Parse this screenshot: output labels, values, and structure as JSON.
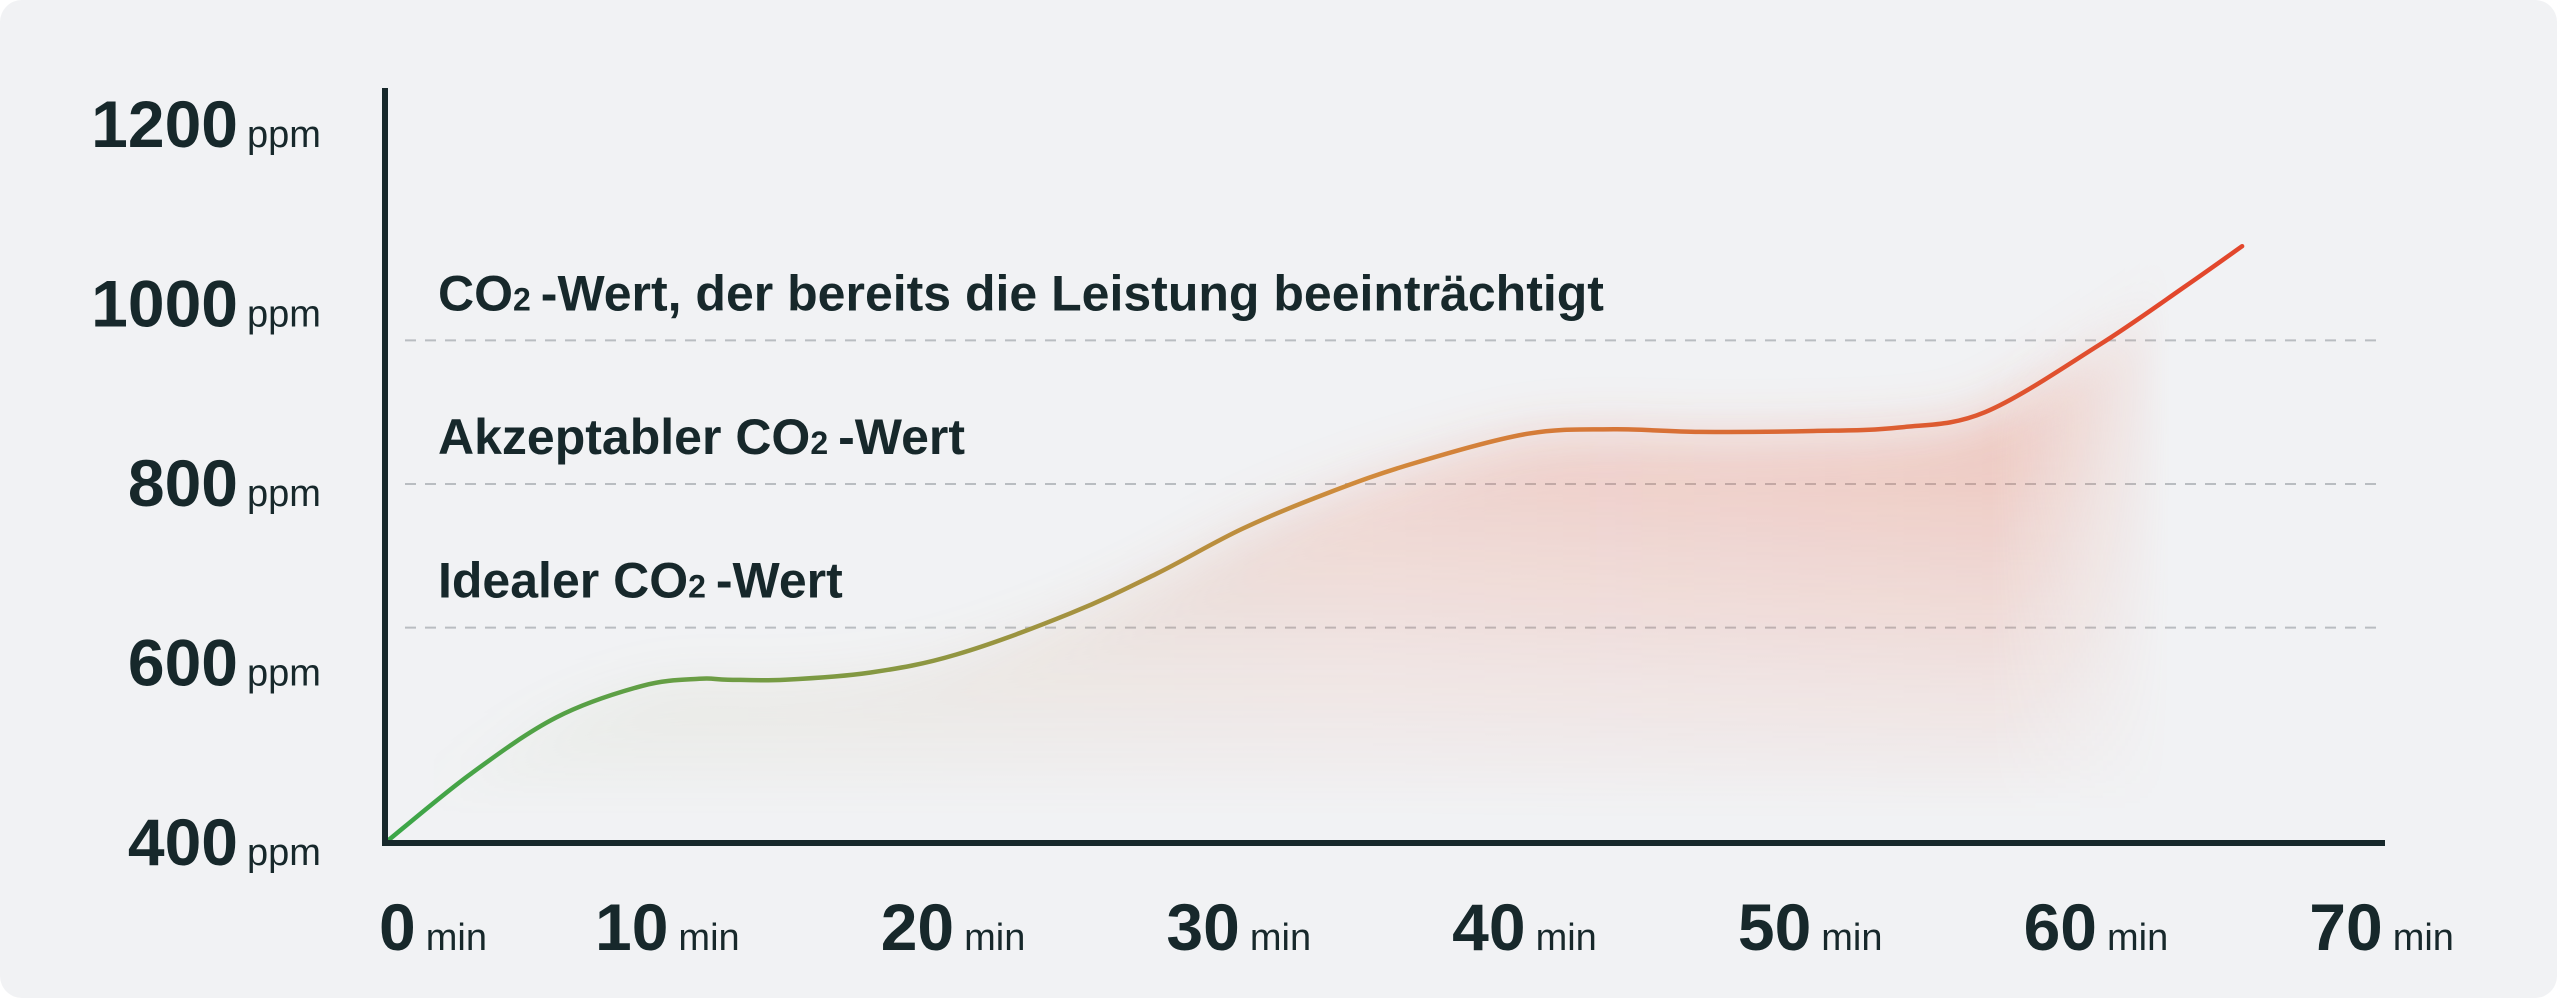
{
  "chart_data": {
    "type": "area",
    "title": "",
    "xlabel": "",
    "ylabel": "",
    "x_unit": "min",
    "y_unit": "ppm",
    "xlim": [
      0,
      70
    ],
    "ylim": [
      400,
      1200
    ],
    "x_ticks": [
      "0",
      "10",
      "20",
      "30",
      "40",
      "50",
      "60",
      "70"
    ],
    "y_ticks": [
      "1200",
      "1000",
      "800",
      "600",
      "400"
    ],
    "grid": false,
    "series": [
      {
        "x": [
          0,
          3,
          6,
          9,
          11,
          12,
          14,
          17,
          20,
          24,
          27,
          30,
          33,
          36,
          40,
          43,
          46,
          50,
          53,
          56,
          60,
          63,
          65
        ],
        "y": [
          400,
          477,
          540,
          575,
          583,
          582,
          582,
          590,
          610,
          656,
          700,
          750,
          790,
          823,
          856,
          861,
          858,
          859,
          863,
          880,
          955,
          1020,
          1065
        ]
      }
    ],
    "thresholds": [
      {
        "value": 960,
        "label_main": "CO",
        "label_sub": "2",
        "label_rest": "-Wert, der bereits die Leistung beeinträchtigt"
      },
      {
        "value": 800,
        "label_main": "Akzeptabler CO",
        "label_sub": "2",
        "label_rest": "-Wert"
      },
      {
        "value": 640,
        "label_main": "Idealer CO",
        "label_sub": "2",
        "label_rest": "-Wert"
      }
    ],
    "colors": {
      "background": "#f1f2f4",
      "axis": "#17282b",
      "text": "#17282b",
      "threshold_line": "#b9bdc1",
      "line_start": "#3aa648",
      "line_mid": "#d18a3c",
      "line_end": "#e2472c",
      "fill_start": "#6aa33c",
      "fill_end": "#e86040"
    }
  }
}
